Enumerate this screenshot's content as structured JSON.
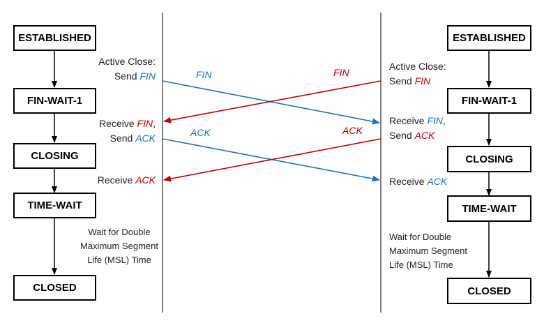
{
  "colors": {
    "blue": "#1f6fc4",
    "red": "#c00000",
    "line": "#555555",
    "arrow": "#000000"
  },
  "left": {
    "states": [
      "ESTABLISHED",
      "FIN-WAIT-1",
      "CLOSING",
      "TIME-WAIT",
      "CLOSED"
    ],
    "active_close": {
      "line1": "Active Close:",
      "send": "Send",
      "fin": "FIN"
    },
    "receive_fin": {
      "receive": "Receive",
      "fin": "FIN",
      "comma": ",",
      "send": "Send",
      "ack": "ACK"
    },
    "receive_ack": {
      "receive": "Receive",
      "ack": "ACK"
    },
    "wait": [
      "Wait for Double",
      "Maximum Segment",
      "Life (MSL) Time"
    ]
  },
  "right": {
    "states": [
      "ESTABLISHED",
      "FIN-WAIT-1",
      "CLOSING",
      "TIME-WAIT",
      "CLOSED"
    ],
    "active_close": {
      "line1": "Active Close:",
      "send": "Send",
      "fin": "FIN"
    },
    "receive_fin": {
      "receive": "Receive",
      "fin": "FIN",
      "comma": ",",
      "send": "Send",
      "ack": "ACK"
    },
    "receive_ack": {
      "receive": "Receive",
      "ack": "ACK"
    },
    "wait": [
      "Wait for Double",
      "Maximum Segment",
      "Life (MSL) Time"
    ]
  },
  "messages": {
    "fin_left": "FIN",
    "fin_right": "FIN",
    "ack_left": "ACK",
    "ack_right": "ACK"
  }
}
